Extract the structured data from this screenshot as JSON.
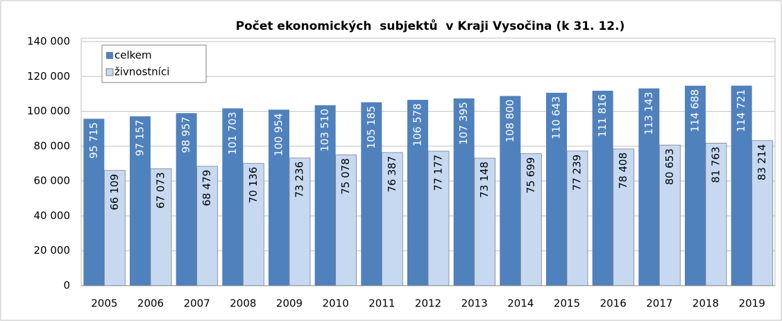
{
  "chart_data": {
    "type": "bar",
    "title": "Počet ekonomických  subjektů  v Kraji Vysočina (k 31. 12.)",
    "categories": [
      "2005",
      "2006",
      "2007",
      "2008",
      "2009",
      "2010",
      "2011",
      "2012",
      "2013",
      "2014",
      "2015",
      "2016",
      "2017",
      "2018",
      "2019"
    ],
    "series": [
      {
        "name": "celkem",
        "color": "#4f81bd",
        "values": [
          95715,
          97157,
          98957,
          101703,
          100954,
          103510,
          105185,
          106578,
          107395,
          108800,
          110643,
          111816,
          113143,
          114688,
          114721
        ],
        "value_labels": [
          "95 715",
          "97 157",
          "98 957",
          "101 703",
          "100 954",
          "103 510",
          "105 185",
          "106 578",
          "107 395",
          "108 800",
          "110 643",
          "111 816",
          "113 143",
          "114 688",
          "114 721"
        ]
      },
      {
        "name": "živnostníci",
        "color": "#c6d9f1",
        "values": [
          66109,
          67073,
          68479,
          70136,
          73236,
          75078,
          76387,
          77177,
          73148,
          75699,
          77239,
          78408,
          80653,
          81763,
          83214
        ],
        "value_labels": [
          "66 109",
          "67 073",
          "68 479",
          "70 136",
          "73 236",
          "75 078",
          "76 387",
          "77 177",
          "73 148",
          "75 699",
          "77 239",
          "78 408",
          "80 653",
          "81 763",
          "83 214"
        ]
      }
    ],
    "ylim": [
      0,
      140000
    ],
    "yticks": [
      0,
      {
        "value": 20000,
        "label": "20 000"
      },
      {
        "value": 40000,
        "label": "40 000"
      },
      {
        "value": 60000,
        "label": "60 000"
      },
      {
        "value": 80000,
        "label": "80 000"
      },
      {
        "value": 100000,
        "label": "100 000"
      },
      {
        "value": 120000,
        "label": "120 000"
      },
      {
        "value": 140000,
        "label": "140 000"
      }
    ],
    "grid": true,
    "legend": "upper left"
  }
}
